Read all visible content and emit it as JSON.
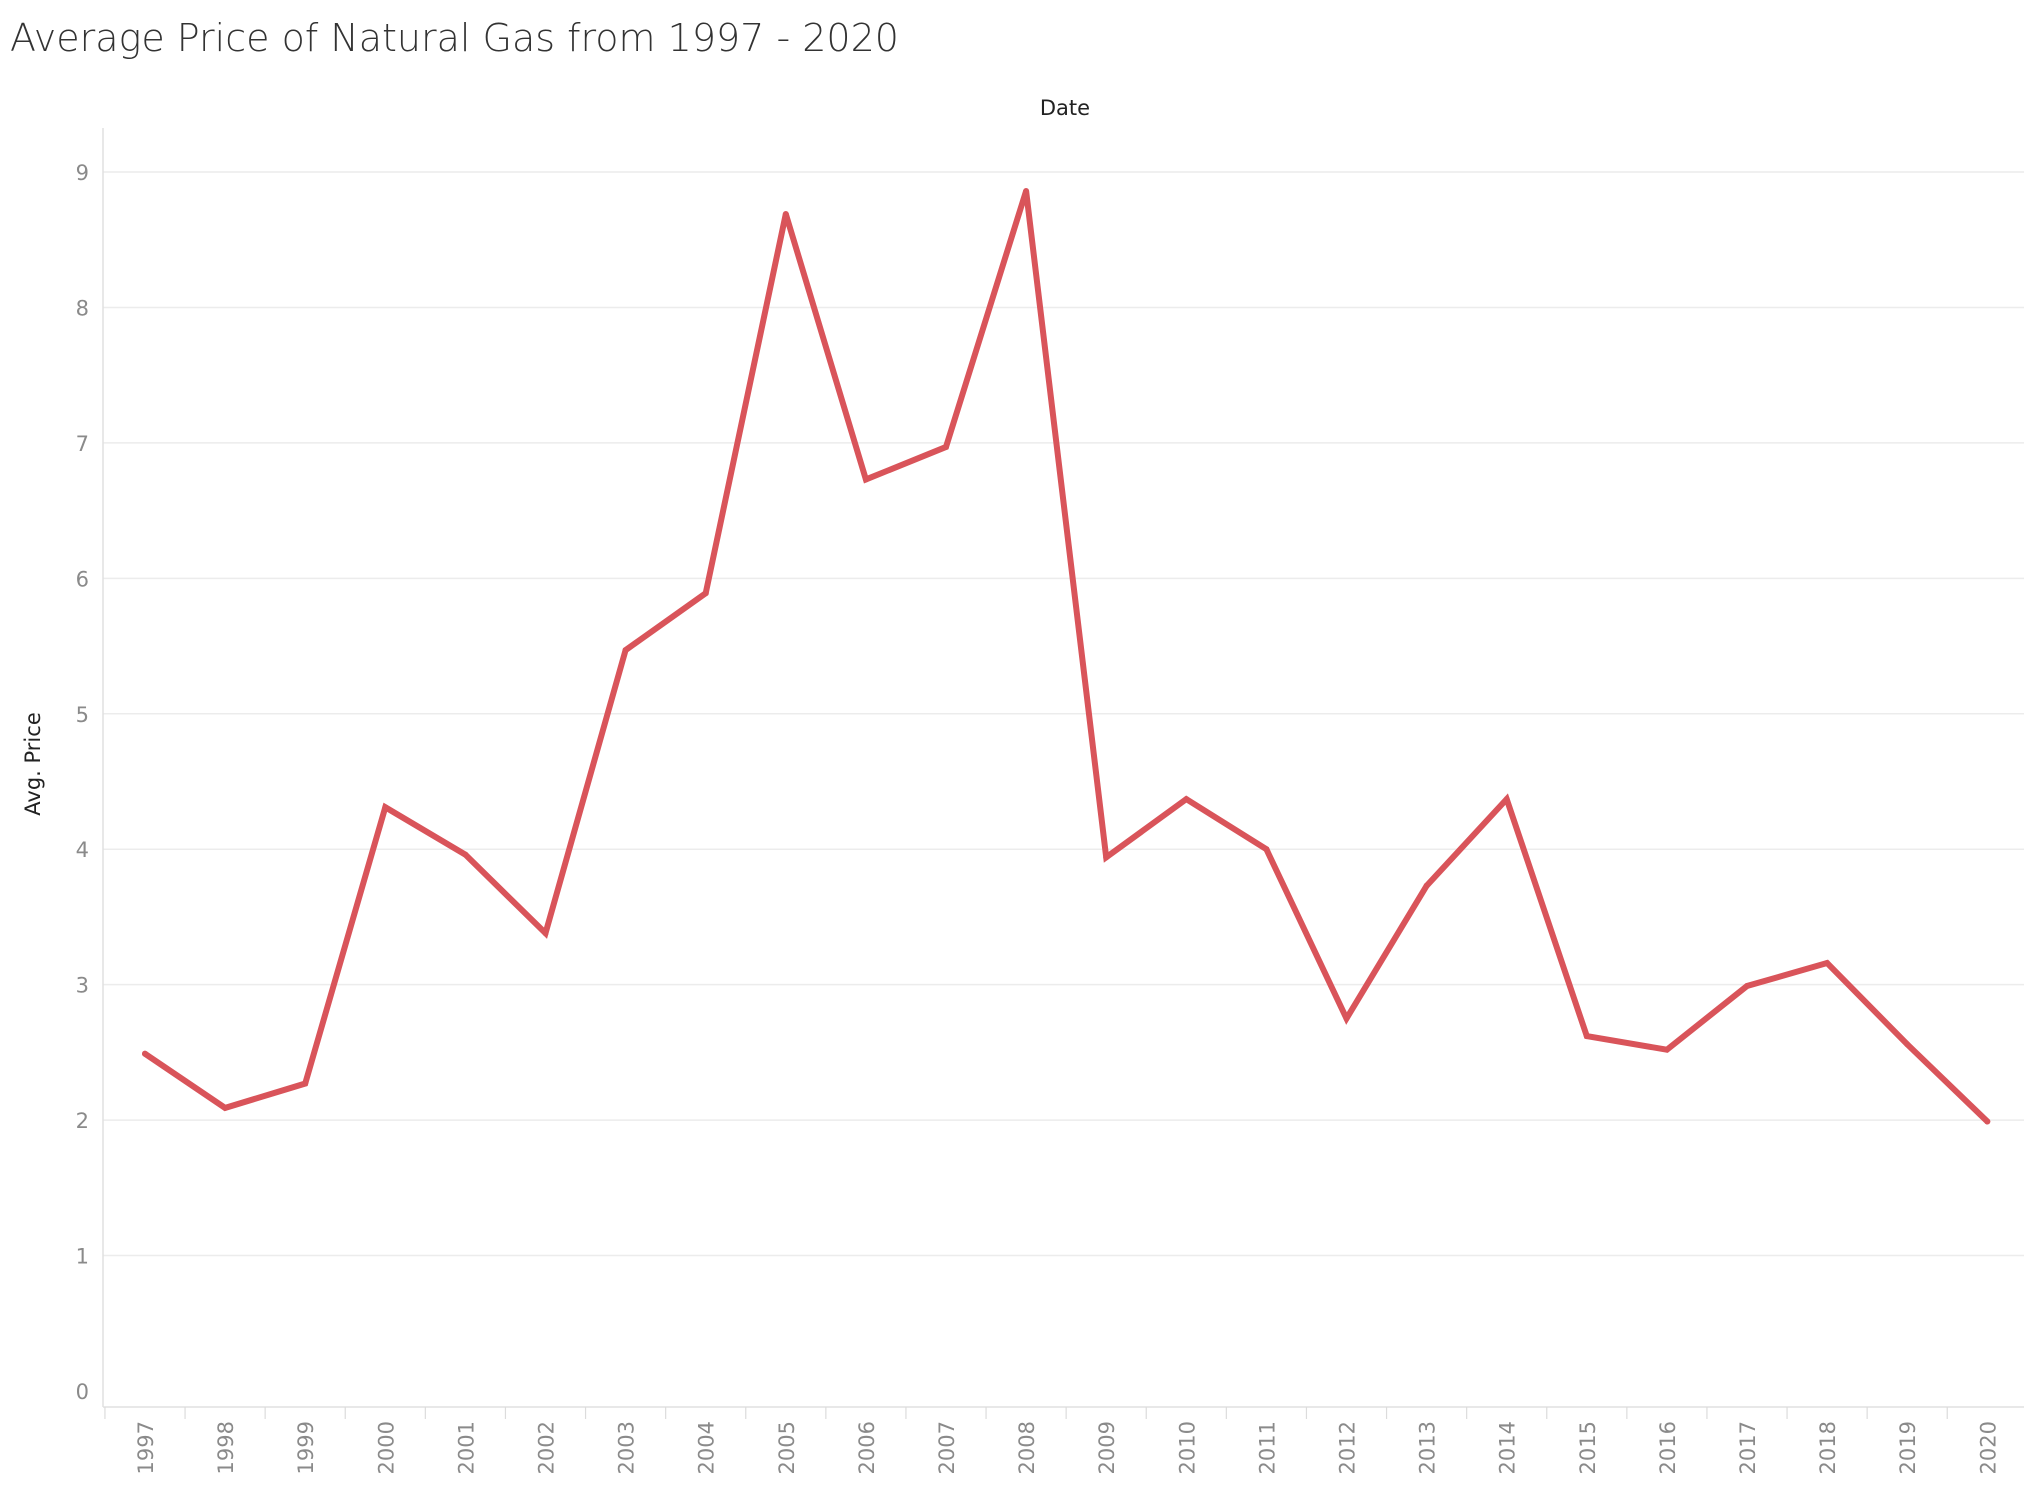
{
  "chart_data": {
    "type": "line",
    "title": "Average Price of Natural Gas from 1997 - 2020",
    "xlabel": "Date",
    "ylabel": "Avg. Price",
    "ylim": [
      0,
      9
    ],
    "y_ticks": [
      0,
      1,
      2,
      3,
      4,
      5,
      6,
      7,
      8,
      9
    ],
    "grid": true,
    "categories": [
      "1997",
      "1998",
      "1999",
      "2000",
      "2001",
      "2002",
      "2003",
      "2004",
      "2005",
      "2006",
      "2007",
      "2008",
      "2009",
      "2010",
      "2011",
      "2012",
      "2013",
      "2014",
      "2015",
      "2016",
      "2017",
      "2018",
      "2019",
      "2020"
    ],
    "series": [
      {
        "name": "Avg. Price",
        "color": "#d9545a",
        "values": [
          2.49,
          2.09,
          2.27,
          4.31,
          3.96,
          3.38,
          5.47,
          5.89,
          8.69,
          6.73,
          6.97,
          8.86,
          3.94,
          4.37,
          4.0,
          2.75,
          3.73,
          4.37,
          2.62,
          2.52,
          2.99,
          3.16,
          2.56,
          1.99
        ]
      }
    ]
  }
}
